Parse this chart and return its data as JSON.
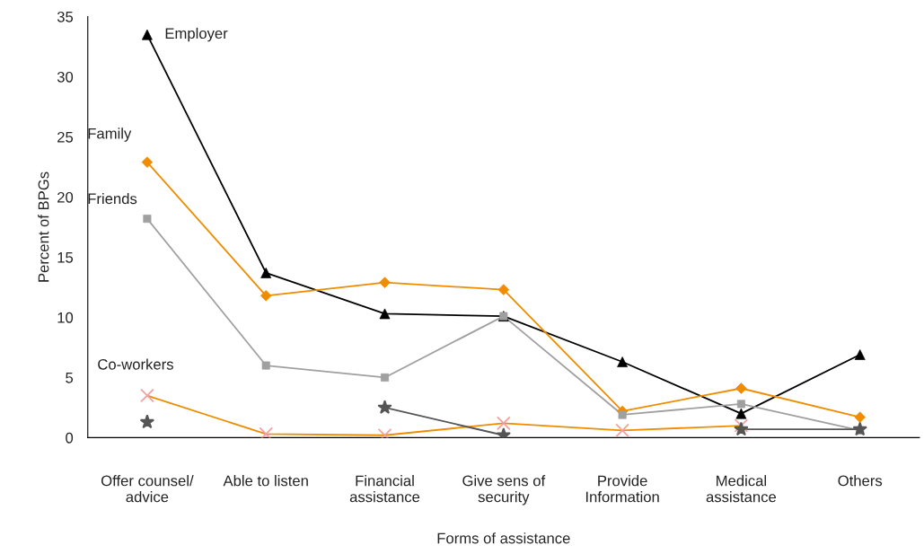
{
  "chart_data": {
    "type": "line",
    "xlabel": "Forms of assistance",
    "ylabel": "Percent of BPGs",
    "categories": [
      "Offer counsel/\nadvice",
      "Able to listen",
      "Financial\nassistance",
      "Give sens of\nsecurity",
      "Provide\nInformation",
      "Medical\nassistance",
      "Others"
    ],
    "ylim": [
      0,
      35
    ],
    "yticks": [
      0,
      5,
      10,
      15,
      20,
      25,
      30,
      35
    ],
    "grid": false,
    "legend": false,
    "series": [
      {
        "name": "Employer",
        "color": "#000000",
        "marker": "triangle",
        "values": [
          33.5,
          13.7,
          10.3,
          10.1,
          6.3,
          2.0,
          6.9
        ]
      },
      {
        "name": "Family",
        "color": "#f08c00",
        "marker": "diamond",
        "values": [
          22.9,
          11.8,
          12.9,
          12.3,
          2.2,
          4.1,
          1.7
        ]
      },
      {
        "name": "Friends",
        "color": "#a0a0a0",
        "marker": "square",
        "values": [
          18.2,
          6.0,
          5.0,
          10.1,
          1.9,
          2.8,
          0.6
        ]
      },
      {
        "name": "Co-workers",
        "color": "#f08c00",
        "colors": [
          "#f4a0a0",
          "#f4a0a0",
          "#f4a0a0",
          "#f4a0a0",
          "#f4a0a0",
          "#f4a0a0",
          null
        ],
        "marker": "cross",
        "values": [
          3.5,
          0.3,
          0.2,
          1.2,
          0.6,
          1.0,
          null
        ]
      },
      {
        "color": "#555555",
        "marker": "star",
        "values": [
          1.3,
          null,
          2.5,
          0.2,
          null,
          0.7,
          0.7
        ]
      }
    ]
  }
}
